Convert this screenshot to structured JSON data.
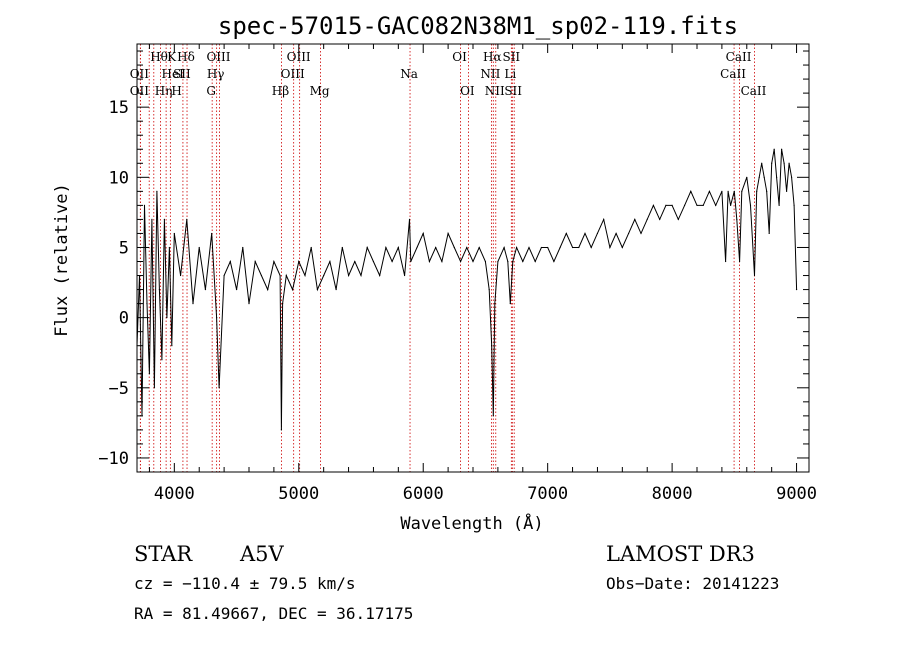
{
  "chart_data": {
    "type": "line",
    "title": "spec-57015-GAC082N38M1_sp02-119.fits",
    "xlabel": "Wavelength (Å)",
    "ylabel": "Flux (relative)",
    "xlim": [
      3700,
      9100
    ],
    "ylim": [
      -11,
      19.5
    ],
    "xticks": [
      4000,
      5000,
      6000,
      7000,
      8000,
      9000
    ],
    "yticks": [
      -10,
      -5,
      0,
      5,
      10,
      15
    ],
    "series": [
      {
        "name": "flux",
        "x": [
          3700,
          3720,
          3740,
          3760,
          3780,
          3800,
          3820,
          3840,
          3860,
          3880,
          3900,
          3920,
          3940,
          3960,
          3980,
          4000,
          4050,
          4100,
          4150,
          4200,
          4250,
          4300,
          4340,
          4360,
          4400,
          4450,
          4500,
          4550,
          4600,
          4650,
          4700,
          4750,
          4800,
          4850,
          4860,
          4870,
          4900,
          4950,
          5000,
          5050,
          5100,
          5150,
          5200,
          5250,
          5300,
          5350,
          5400,
          5450,
          5500,
          5550,
          5600,
          5650,
          5700,
          5750,
          5800,
          5850,
          5890,
          5900,
          5950,
          6000,
          6050,
          6100,
          6150,
          6200,
          6250,
          6300,
          6350,
          6400,
          6450,
          6500,
          6530,
          6550,
          6563,
          6575,
          6600,
          6650,
          6680,
          6700,
          6720,
          6750,
          6800,
          6850,
          6900,
          6950,
          7000,
          7050,
          7100,
          7150,
          7200,
          7250,
          7300,
          7350,
          7400,
          7450,
          7500,
          7550,
          7600,
          7650,
          7700,
          7750,
          7800,
          7850,
          7900,
          7950,
          8000,
          8050,
          8100,
          8150,
          8200,
          8250,
          8300,
          8350,
          8400,
          8430,
          8450,
          8470,
          8500,
          8520,
          8542,
          8560,
          8600,
          8630,
          8662,
          8680,
          8700,
          8720,
          8740,
          8760,
          8780,
          8800,
          8820,
          8840,
          8860,
          8880,
          8900,
          8920,
          8940,
          8960,
          8980,
          9000
        ],
        "values": [
          -2,
          3,
          -7,
          8,
          1,
          -4,
          7,
          -5,
          9,
          2,
          -3,
          7,
          0,
          5,
          -2,
          6,
          3,
          7,
          1,
          5,
          2,
          6,
          0,
          -5,
          3,
          4,
          2,
          5,
          1,
          4,
          3,
          2,
          4,
          3,
          -8,
          1,
          3,
          2,
          4,
          3,
          5,
          2,
          3,
          4,
          2,
          5,
          3,
          4,
          3,
          5,
          4,
          3,
          5,
          4,
          5,
          3,
          7,
          4,
          5,
          6,
          4,
          5,
          4,
          6,
          5,
          4,
          5,
          4,
          5,
          4,
          2,
          -2,
          -7,
          1,
          4,
          5,
          4,
          1,
          4,
          5,
          4,
          5,
          4,
          5,
          5,
          4,
          5,
          6,
          5,
          5,
          6,
          5,
          6,
          7,
          5,
          6,
          5,
          6,
          7,
          6,
          7,
          8,
          7,
          8,
          8,
          7,
          8,
          9,
          8,
          8,
          9,
          8,
          9,
          4,
          9,
          8,
          9,
          7,
          4,
          9,
          10,
          8,
          3,
          9,
          10,
          11,
          10,
          9,
          6,
          11,
          12,
          10,
          8,
          12,
          11,
          9,
          11,
          10,
          8,
          2
        ]
      }
    ],
    "lines": [
      {
        "name": "OII",
        "x": 3727,
        "row": 1,
        "side": "left"
      },
      {
        "name": "Hθ",
        "x": 3798,
        "row": 0,
        "side": "right"
      },
      {
        "name": "OII",
        "x": 3727,
        "row": 2,
        "side": "left"
      },
      {
        "name": "Hη",
        "x": 3835,
        "row": 2,
        "side": "right"
      },
      {
        "name": "HeI",
        "x": 3889,
        "row": 1,
        "side": "right"
      },
      {
        "name": "K",
        "x": 3934,
        "row": 0,
        "side": "right"
      },
      {
        "name": "H",
        "x": 3968,
        "row": 2,
        "side": "right"
      },
      {
        "name": "SII",
        "x": 4069,
        "row": 1,
        "side": "left"
      },
      {
        "name": "Hδ",
        "x": 4102,
        "row": 0,
        "side": "left"
      },
      {
        "name": "OIII",
        "x": 4363,
        "row": 0,
        "side": "left"
      },
      {
        "name": "Hγ",
        "x": 4340,
        "row": 1,
        "side": "left"
      },
      {
        "name": "G",
        "x": 4304,
        "row": 2,
        "side": "left"
      },
      {
        "name": "Hβ",
        "x": 4861,
        "row": 2,
        "side": "left"
      },
      {
        "name": "OIII",
        "x": 5007,
        "row": 0,
        "side": "left"
      },
      {
        "name": "OIII",
        "x": 4959,
        "row": 1,
        "side": "left"
      },
      {
        "name": "Mg",
        "x": 5175,
        "row": 2,
        "side": "left"
      },
      {
        "name": "Na",
        "x": 5894,
        "row": 1,
        "side": "left"
      },
      {
        "name": "OI",
        "x": 6300,
        "row": 0,
        "side": "left"
      },
      {
        "name": "OI",
        "x": 6363,
        "row": 2,
        "side": "left"
      },
      {
        "name": "Hα",
        "x": 6563,
        "row": 0,
        "side": "left"
      },
      {
        "name": "NII",
        "x": 6548,
        "row": 1,
        "side": "left"
      },
      {
        "name": "NII",
        "x": 6583,
        "row": 2,
        "side": "left"
      },
      {
        "name": "SII",
        "x": 6716,
        "row": 0,
        "side": "left"
      },
      {
        "name": "Li",
        "x": 6708,
        "row": 1,
        "side": "left"
      },
      {
        "name": "SII",
        "x": 6731,
        "row": 2,
        "side": "left"
      },
      {
        "name": "CaII",
        "x": 8542,
        "row": 0,
        "side": "left"
      },
      {
        "name": "CaII",
        "x": 8498,
        "row": 1,
        "side": "left"
      },
      {
        "name": "CaII",
        "x": 8662,
        "row": 2,
        "side": "left"
      }
    ]
  },
  "info": {
    "class_label": "STAR",
    "subclass_label": "A5V",
    "survey": "LAMOST DR3",
    "redshift": "cz = −110.4 ± 79.5 km/s",
    "obs_date": "Obs−Date: 20141223",
    "coords": "RA =  81.49667, DEC =  36.17175"
  },
  "colors": {
    "spectrum": "#000000",
    "line_marker": "#cc0000",
    "text": "#000000"
  }
}
